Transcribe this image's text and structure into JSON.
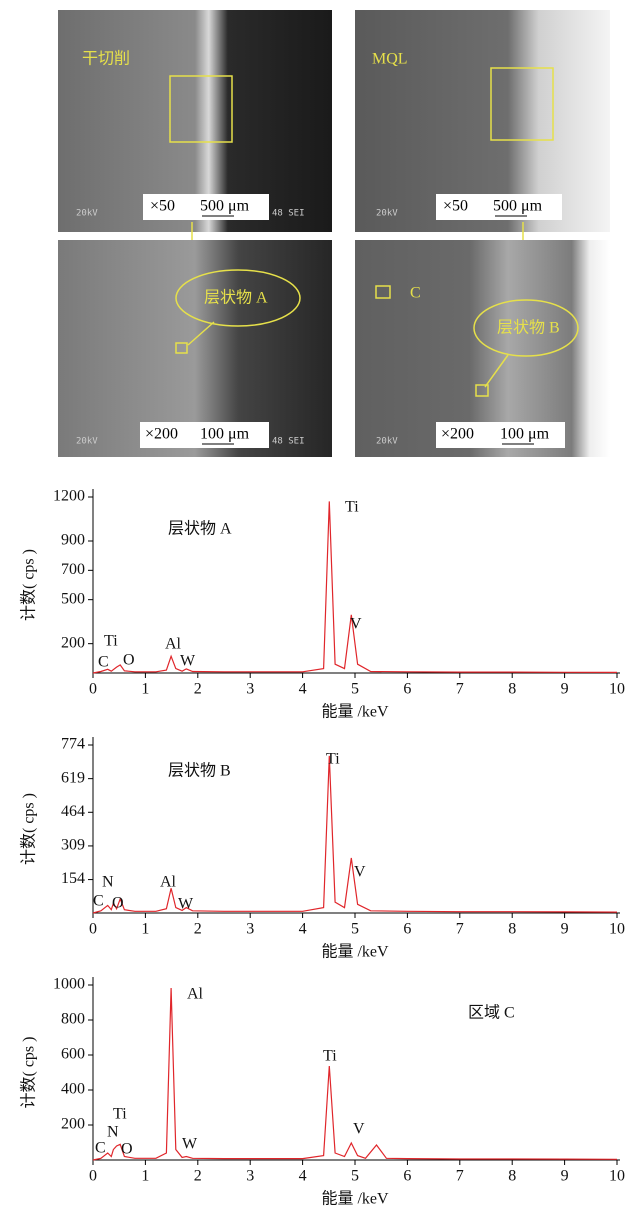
{
  "sem_images": [
    {
      "label": "干切削",
      "magnification": "×50",
      "scale_bar": "500 μm",
      "footer": [
        "20kV",
        "48 SEI"
      ]
    },
    {
      "label": "MQL",
      "magnification": "×50",
      "scale_bar": "500 μm",
      "footer": [
        "20kV"
      ]
    },
    {
      "callout": "层状物 A",
      "magnification": "×200",
      "scale_bar": "100 μm",
      "footer": [
        "20kV",
        "48 SEI"
      ]
    },
    {
      "callout": "层状物 B",
      "region": "C",
      "magnification": "×200",
      "scale_bar": "100 μm",
      "footer": [
        "20kV"
      ]
    }
  ],
  "chart_data": [
    {
      "type": "line",
      "title": "层状物 A",
      "xlabel": "能量 /keV",
      "ylabel": "计数( cps )",
      "color": "#e0262b",
      "x": [
        0,
        0.15,
        0.28,
        0.35,
        0.45,
        0.52,
        0.6,
        0.8,
        1.2,
        1.4,
        1.49,
        1.58,
        1.7,
        1.78,
        1.9,
        2.5,
        3,
        4,
        4.4,
        4.51,
        4.62,
        4.8,
        4.93,
        5.05,
        5.3,
        6,
        7,
        8,
        9,
        10
      ],
      "values": [
        0,
        10,
        25,
        12,
        40,
        55,
        15,
        8,
        8,
        20,
        114,
        30,
        12,
        28,
        10,
        8,
        8,
        8,
        30,
        1170,
        60,
        30,
        397,
        60,
        10,
        8,
        6,
        6,
        5,
        4
      ],
      "annotations": [
        "C",
        "Ti",
        "O",
        "Al",
        "W",
        "Ti",
        "V"
      ],
      "xlim": [
        0,
        10
      ],
      "xticks": [
        0,
        1,
        2,
        3,
        4,
        5,
        6,
        7,
        8,
        9,
        10
      ],
      "ylim": [
        0,
        1200
      ],
      "yticks": [
        200,
        500,
        700,
        900,
        1200
      ]
    },
    {
      "type": "line",
      "title": "层状物 B",
      "xlabel": "能量 /keV",
      "ylabel": "计数( cps )",
      "color": "#e0262b",
      "x": [
        0,
        0.15,
        0.28,
        0.35,
        0.39,
        0.45,
        0.52,
        0.6,
        0.8,
        1.2,
        1.4,
        1.49,
        1.58,
        1.7,
        1.78,
        1.9,
        2.5,
        3,
        4,
        4.4,
        4.51,
        4.62,
        4.8,
        4.93,
        5.05,
        5.3,
        6,
        7,
        8,
        9,
        10
      ],
      "values": [
        0,
        10,
        35,
        15,
        45,
        20,
        65,
        15,
        8,
        8,
        20,
        114,
        25,
        12,
        25,
        10,
        8,
        8,
        8,
        25,
        724,
        50,
        25,
        254,
        40,
        10,
        8,
        6,
        6,
        5,
        4
      ],
      "annotations": [
        "N",
        "C",
        "O",
        "Al",
        "W",
        "Ti",
        "V"
      ],
      "xlim": [
        0,
        10
      ],
      "xticks": [
        0,
        1,
        2,
        3,
        4,
        5,
        6,
        7,
        8,
        9,
        10
      ],
      "ylim": [
        0,
        774
      ],
      "yticks": [
        154,
        309,
        464,
        619,
        774
      ]
    },
    {
      "type": "line",
      "title": "区域 C",
      "xlabel": "能量 /keV",
      "ylabel": "计数( cps )",
      "color": "#e0262b",
      "x": [
        0,
        0.15,
        0.28,
        0.35,
        0.39,
        0.45,
        0.52,
        0.6,
        0.8,
        1.2,
        1.4,
        1.49,
        1.58,
        1.7,
        1.78,
        1.9,
        2.5,
        3,
        4,
        4.4,
        4.51,
        4.62,
        4.8,
        4.93,
        5.05,
        5.2,
        5.41,
        5.6,
        6,
        7,
        8,
        9,
        10
      ],
      "values": [
        0,
        10,
        40,
        20,
        60,
        80,
        90,
        20,
        10,
        10,
        40,
        983,
        60,
        15,
        20,
        10,
        8,
        8,
        8,
        25,
        537,
        40,
        20,
        97,
        25,
        10,
        86,
        10,
        8,
        6,
        6,
        5,
        4
      ],
      "annotations": [
        "N",
        "Ti",
        "C",
        "O",
        "Al",
        "W",
        "Ti",
        "V"
      ],
      "xlim": [
        0,
        10
      ],
      "xticks": [
        0,
        1,
        2,
        3,
        4,
        5,
        6,
        7,
        8,
        9,
        10
      ],
      "ylim": [
        0,
        1000
      ],
      "yticks": [
        200,
        400,
        600,
        800,
        1000
      ]
    }
  ]
}
